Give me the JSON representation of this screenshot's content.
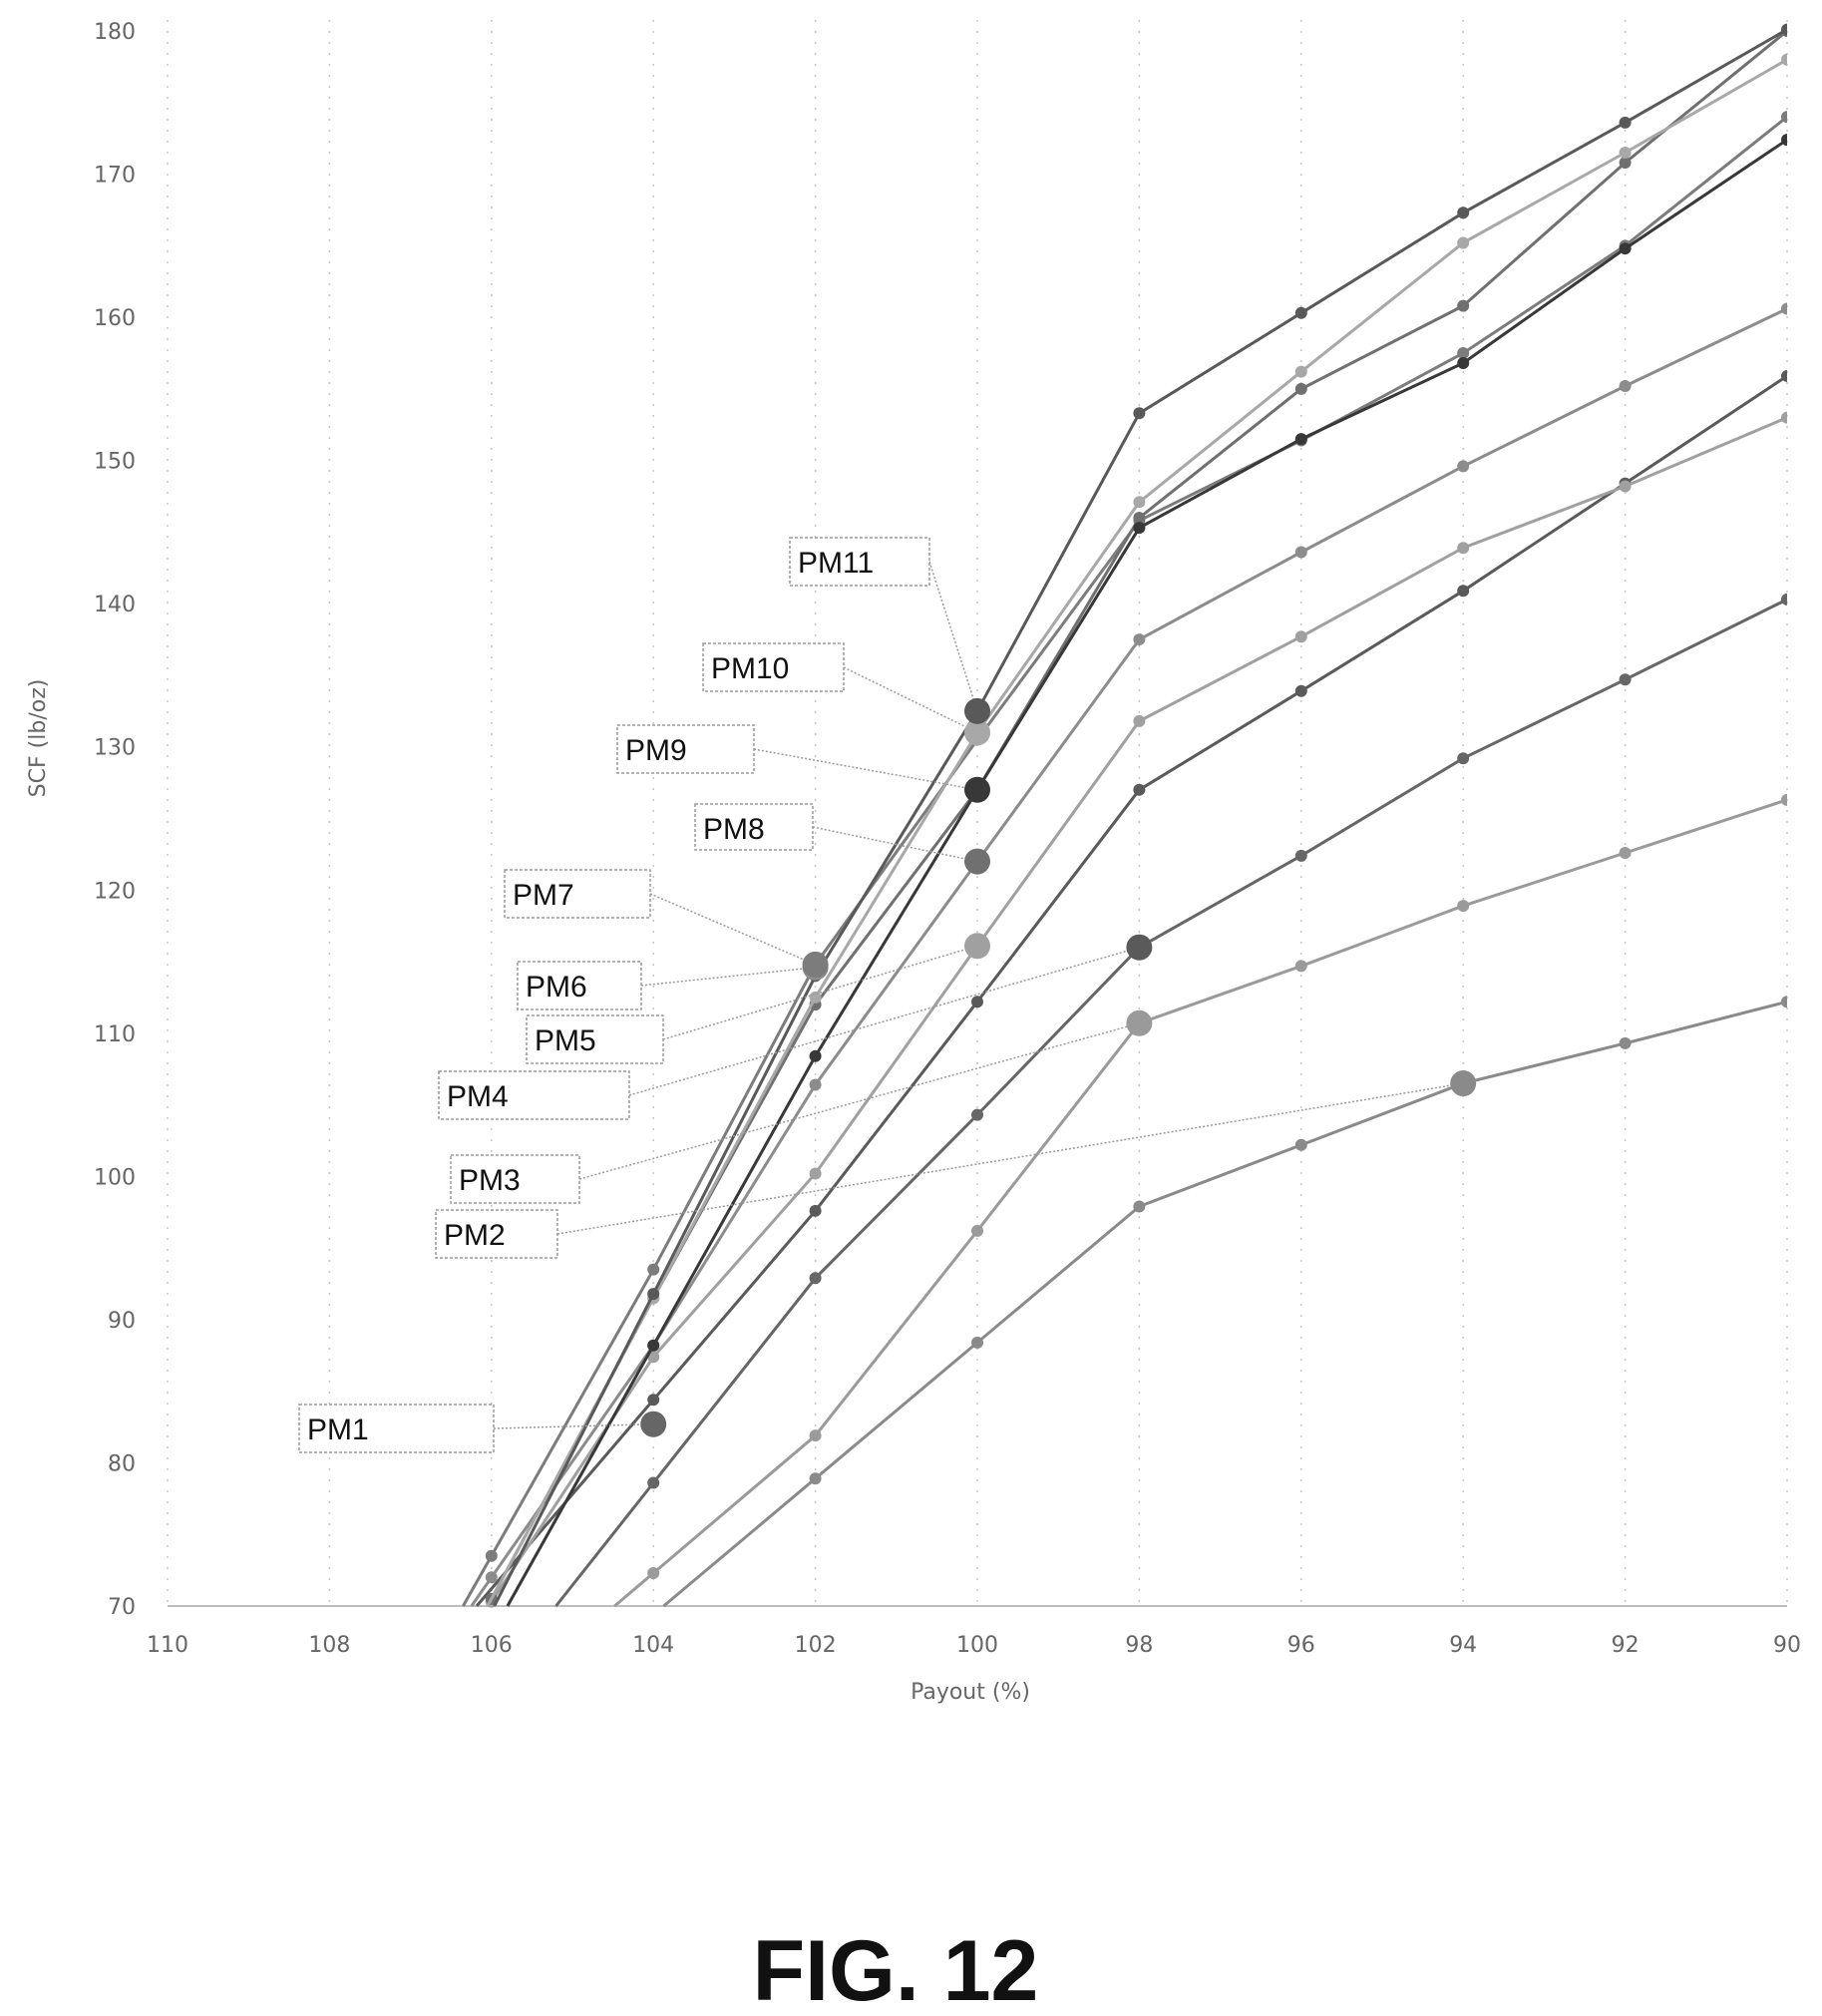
{
  "chart_data": {
    "type": "line",
    "title": "",
    "xlabel": "Payout (%)",
    "ylabel": "SCF (lb/oz)",
    "x_reversed": true,
    "xlim": [
      90,
      110
    ],
    "ylim": [
      70,
      180
    ],
    "x_ticks": [
      110,
      108,
      106,
      104,
      102,
      100,
      98,
      96,
      94,
      92,
      90
    ],
    "y_ticks": [
      70,
      80,
      90,
      100,
      110,
      120,
      130,
      140,
      150,
      160,
      170,
      180
    ],
    "grid": "dotted vertical",
    "x": [
      106,
      104,
      102,
      100,
      98,
      96,
      94,
      92,
      90
    ],
    "series": [
      {
        "name": "PM1",
        "color": "#666666",
        "marker_x": 104,
        "marker_y": 82.7,
        "values": [
          null,
          78.6,
          92.9,
          104.3,
          116.0,
          122.4,
          129.2,
          134.7,
          140.3
        ]
      },
      {
        "name": "PM2",
        "color": "#8a8a8a",
        "marker_x": 94,
        "marker_y": 106.5,
        "values": [
          null,
          null,
          78.9,
          88.4,
          97.9,
          102.2,
          106.5,
          109.3,
          112.2
        ]
      },
      {
        "name": "PM3",
        "color": "#9a9a9a",
        "marker_x": 98,
        "marker_y": 110.7,
        "values": [
          null,
          72.3,
          81.9,
          96.2,
          110.7,
          114.7,
          118.9,
          122.6,
          126.3
        ]
      },
      {
        "name": "PM4",
        "color": "#5a5a5a",
        "marker_x": 98,
        "marker_y": 116.0,
        "values": [
          null,
          84.4,
          97.6,
          112.2,
          127.0,
          133.9,
          140.9,
          148.4,
          155.9
        ]
      },
      {
        "name": "PM5",
        "color": "#a0a0a0",
        "marker_x": 100,
        "marker_y": 116.1,
        "values": [
          70.3,
          87.4,
          100.2,
          116.1,
          131.8,
          137.7,
          143.9,
          148.2,
          153.0
        ]
      },
      {
        "name": "PM6",
        "color": "#8c8c8c",
        "marker_x": 102,
        "marker_y": 114.6,
        "values": [
          72.0,
          88.2,
          106.4,
          122.0,
          137.5,
          143.6,
          149.6,
          155.2,
          160.6
        ]
      },
      {
        "name": "PM7",
        "color": "#7c7c7c",
        "marker_x": 102,
        "marker_y": 114.8,
        "values": [
          73.5,
          93.5,
          114.8,
          130.5,
          145.8,
          151.4,
          157.5,
          165.0,
          174.0
        ]
      },
      {
        "name": "PM8",
        "color": "#707070",
        "marker_x": 100,
        "marker_y": 122.0,
        "values": [
          70.5,
          91.5,
          112.0,
          127.0,
          146.0,
          155.0,
          160.8,
          170.8,
          180.0
        ]
      },
      {
        "name": "PM9",
        "color": "#383838",
        "marker_x": 100,
        "marker_y": 127.0,
        "values": [
          null,
          88.2,
          108.4,
          127.0,
          145.3,
          151.5,
          156.8,
          164.8,
          172.4
        ]
      },
      {
        "name": "PM10",
        "color": "#a8a8a8",
        "marker_x": 100,
        "marker_y": 131.0,
        "values": [
          null,
          91.5,
          112.5,
          131.0,
          147.1,
          156.2,
          165.2,
          171.5,
          178.0
        ]
      },
      {
        "name": "PM11",
        "color": "#595959",
        "marker_x": 100,
        "marker_y": 132.5,
        "values": [
          null,
          91.8,
          114.0,
          132.5,
          153.3,
          160.3,
          167.3,
          173.6,
          180.1
        ]
      }
    ]
  },
  "labels": {
    "PM1": "PM1",
    "PM2": "PM2",
    "PM3": "PM3",
    "PM4": "PM4",
    "PM5": "PM5",
    "PM6": "PM6",
    "PM7": "PM7",
    "PM8": "PM8",
    "PM9": "PM9",
    "PM10": "PM10",
    "PM11": "PM11"
  },
  "figure_title": "FIG. 12"
}
